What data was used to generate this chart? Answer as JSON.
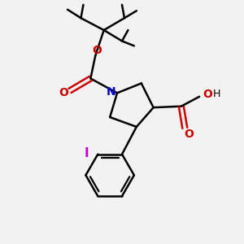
{
  "background_color": "#f2f2f2",
  "bond_color": "#000000",
  "n_color": "#0000cc",
  "o_color": "#cc0000",
  "i_color": "#cc00cc",
  "figsize": [
    3.0,
    3.0
  ],
  "dpi": 100,
  "xlim": [
    0,
    10
  ],
  "ylim": [
    0,
    10
  ]
}
